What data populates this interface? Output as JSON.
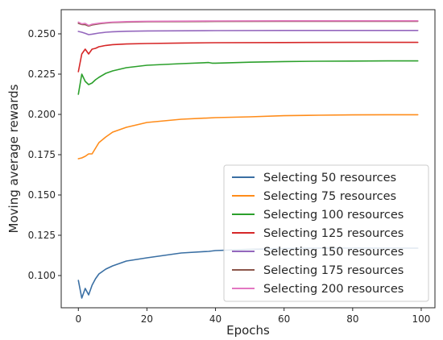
{
  "chart_data": {
    "type": "line",
    "title": "",
    "xlabel": "Epochs",
    "ylabel": "Moving average rewards",
    "xlim": [
      -5,
      104
    ],
    "ylim": [
      0.08,
      0.265
    ],
    "xticks": [
      0,
      20,
      40,
      60,
      80,
      100
    ],
    "xtick_labels": [
      "0",
      "20",
      "40",
      "60",
      "80",
      "100"
    ],
    "yticks": [
      0.1,
      0.125,
      0.15,
      0.175,
      0.2,
      0.225,
      0.25
    ],
    "ytick_labels": [
      "0.100",
      "0.125",
      "0.150",
      "0.175",
      "0.200",
      "0.225",
      "0.250"
    ],
    "grid": false,
    "legend_position": "lower-right",
    "series": [
      {
        "name": "Selecting 50 resources",
        "color": "#3a6fa3",
        "points": [
          [
            0,
            0.097
          ],
          [
            1,
            0.086
          ],
          [
            2,
            0.092
          ],
          [
            3,
            0.088
          ],
          [
            4,
            0.094
          ],
          [
            5,
            0.098
          ],
          [
            6,
            0.101
          ],
          [
            8,
            0.104
          ],
          [
            10,
            0.106
          ],
          [
            14,
            0.109
          ],
          [
            20,
            0.111
          ],
          [
            30,
            0.114
          ],
          [
            38,
            0.115
          ],
          [
            40,
            0.1155
          ],
          [
            50,
            0.1163
          ],
          [
            60,
            0.1167
          ],
          [
            70,
            0.117
          ],
          [
            80,
            0.117
          ],
          [
            90,
            0.117
          ],
          [
            99,
            0.117
          ]
        ]
      },
      {
        "name": "Selecting 75 resources",
        "color": "#ff8c1a",
        "points": [
          [
            0,
            0.1725
          ],
          [
            1,
            0.173
          ],
          [
            2,
            0.174
          ],
          [
            3,
            0.1755
          ],
          [
            4,
            0.1755
          ],
          [
            5,
            0.179
          ],
          [
            6,
            0.1825
          ],
          [
            8,
            0.186
          ],
          [
            10,
            0.189
          ],
          [
            14,
            0.192
          ],
          [
            20,
            0.195
          ],
          [
            30,
            0.197
          ],
          [
            40,
            0.198
          ],
          [
            50,
            0.1985
          ],
          [
            60,
            0.1992
          ],
          [
            70,
            0.1995
          ],
          [
            80,
            0.1997
          ],
          [
            90,
            0.1998
          ],
          [
            99,
            0.1998
          ]
        ]
      },
      {
        "name": "Selecting 100 resources",
        "color": "#2ca02c",
        "points": [
          [
            0,
            0.2125
          ],
          [
            1,
            0.225
          ],
          [
            2,
            0.2205
          ],
          [
            3,
            0.2185
          ],
          [
            4,
            0.2195
          ],
          [
            5,
            0.2215
          ],
          [
            6,
            0.223
          ],
          [
            8,
            0.2255
          ],
          [
            10,
            0.227
          ],
          [
            14,
            0.229
          ],
          [
            20,
            0.2305
          ],
          [
            30,
            0.2315
          ],
          [
            38,
            0.2322
          ],
          [
            39,
            0.2318
          ],
          [
            40,
            0.2318
          ],
          [
            50,
            0.2324
          ],
          [
            60,
            0.2328
          ],
          [
            70,
            0.233
          ],
          [
            80,
            0.2331
          ],
          [
            90,
            0.2332
          ],
          [
            99,
            0.2332
          ]
        ]
      },
      {
        "name": "Selecting 125 resources",
        "color": "#d62728",
        "points": [
          [
            0,
            0.2265
          ],
          [
            1,
            0.2375
          ],
          [
            2,
            0.2405
          ],
          [
            3,
            0.2375
          ],
          [
            4,
            0.2405
          ],
          [
            5,
            0.241
          ],
          [
            6,
            0.242
          ],
          [
            8,
            0.2428
          ],
          [
            10,
            0.2433
          ],
          [
            14,
            0.2437
          ],
          [
            20,
            0.244
          ],
          [
            30,
            0.2443
          ],
          [
            40,
            0.2445
          ],
          [
            60,
            0.2446
          ],
          [
            80,
            0.2447
          ],
          [
            99,
            0.2447
          ]
        ]
      },
      {
        "name": "Selecting 150 resources",
        "color": "#9467bd",
        "points": [
          [
            0,
            0.2515
          ],
          [
            1,
            0.251
          ],
          [
            2,
            0.2503
          ],
          [
            3,
            0.2495
          ],
          [
            4,
            0.2498
          ],
          [
            6,
            0.2505
          ],
          [
            8,
            0.251
          ],
          [
            10,
            0.2513
          ],
          [
            14,
            0.2516
          ],
          [
            20,
            0.2518
          ],
          [
            40,
            0.252
          ],
          [
            60,
            0.2521
          ],
          [
            80,
            0.2521
          ],
          [
            99,
            0.2521
          ]
        ]
      },
      {
        "name": "Selecting 175 resources",
        "color": "#8c564b",
        "points": [
          [
            0,
            0.2565
          ],
          [
            1,
            0.2558
          ],
          [
            2,
            0.2557
          ],
          [
            3,
            0.2548
          ],
          [
            4,
            0.2555
          ],
          [
            6,
            0.2562
          ],
          [
            8,
            0.2567
          ],
          [
            10,
            0.257
          ],
          [
            14,
            0.2573
          ],
          [
            20,
            0.2575
          ],
          [
            40,
            0.2577
          ],
          [
            60,
            0.2578
          ],
          [
            80,
            0.2578
          ],
          [
            99,
            0.2578
          ]
        ]
      },
      {
        "name": "Selecting 200 resources",
        "color": "#e377c2",
        "points": [
          [
            0,
            0.2573
          ],
          [
            1,
            0.2562
          ],
          [
            2,
            0.2565
          ],
          [
            3,
            0.2552
          ],
          [
            4,
            0.256
          ],
          [
            6,
            0.2566
          ],
          [
            8,
            0.257
          ],
          [
            10,
            0.2573
          ],
          [
            14,
            0.2576
          ],
          [
            20,
            0.2578
          ],
          [
            40,
            0.258
          ],
          [
            60,
            0.2581
          ],
          [
            80,
            0.2581
          ],
          [
            99,
            0.2581
          ]
        ]
      }
    ]
  }
}
